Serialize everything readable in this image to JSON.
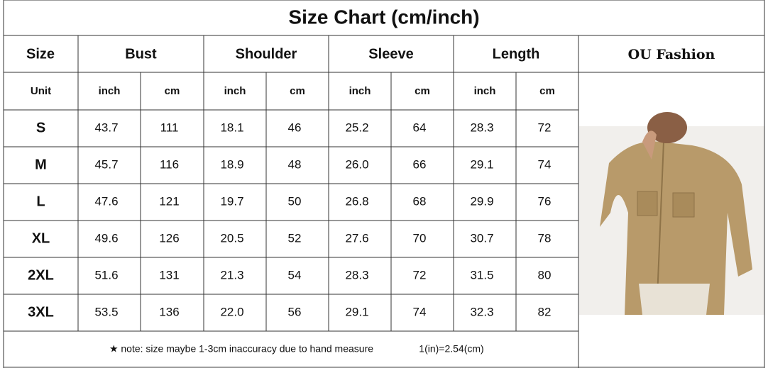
{
  "title": "Size Chart (cm/inch)",
  "header": {
    "size": "Size",
    "groups": [
      "Bust",
      "Shoulder",
      "Sleeve",
      "Length"
    ],
    "brand": "OU Fashion"
  },
  "units": [
    "Unit",
    "inch",
    "cm",
    "inch",
    "cm",
    "inch",
    "cm",
    "inch",
    "cm"
  ],
  "table": {
    "rows": [
      [
        "S",
        "43.7",
        "111",
        "18.1",
        "46",
        "25.2",
        "64",
        "28.3",
        "72"
      ],
      [
        "M",
        "45.7",
        "116",
        "18.9",
        "48",
        "26.0",
        "66",
        "29.1",
        "74"
      ],
      [
        "L",
        "47.6",
        "121",
        "19.7",
        "50",
        "26.8",
        "68",
        "29.9",
        "76"
      ],
      [
        "XL",
        "49.6",
        "126",
        "20.5",
        "52",
        "27.6",
        "70",
        "30.7",
        "78"
      ],
      [
        "2XL",
        "51.6",
        "131",
        "21.3",
        "54",
        "28.3",
        "72",
        "31.5",
        "80"
      ],
      [
        "3XL",
        "53.5",
        "136",
        "22.0",
        "56",
        "29.1",
        "74",
        "32.3",
        "82"
      ]
    ]
  },
  "note": {
    "text": "★ note: size maybe 1-3cm inaccuracy due to hand measure",
    "conversion": "1(in)=2.54(cm)"
  }
}
